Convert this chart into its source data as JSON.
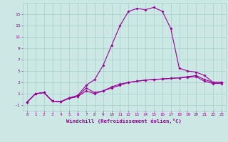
{
  "xlabel": "Windchill (Refroidissement éolien,°C)",
  "bg_color": "#cce8e4",
  "grid_color": "#aacccc",
  "line_color": "#990099",
  "x_values": [
    0,
    1,
    2,
    3,
    4,
    5,
    6,
    7,
    8,
    9,
    10,
    11,
    12,
    13,
    14,
    15,
    16,
    17,
    18,
    19,
    20,
    21,
    22,
    23
  ],
  "series1": [
    -0.5,
    1.0,
    1.2,
    -0.3,
    -0.4,
    0.2,
    0.5,
    2.0,
    1.2,
    1.5,
    2.0,
    2.5,
    3.0,
    3.2,
    3.4,
    3.5,
    3.6,
    3.7,
    3.8,
    4.0,
    4.2,
    3.5,
    3.0,
    3.0
  ],
  "series2": [
    -0.5,
    1.0,
    1.2,
    -0.3,
    -0.4,
    0.3,
    0.7,
    2.5,
    3.5,
    6.0,
    9.5,
    13.0,
    15.5,
    16.0,
    15.8,
    16.2,
    15.5,
    12.5,
    5.5,
    5.0,
    4.8,
    4.2,
    3.0,
    3.0
  ],
  "series3": [
    -0.5,
    1.0,
    1.2,
    -0.3,
    -0.4,
    0.2,
    0.5,
    1.5,
    1.0,
    1.5,
    2.2,
    2.7,
    3.0,
    3.2,
    3.4,
    3.5,
    3.6,
    3.7,
    3.8,
    3.9,
    4.0,
    3.2,
    2.8,
    2.8
  ],
  "ylim": [
    -2.0,
    17.0
  ],
  "yticks": [
    -1,
    1,
    3,
    5,
    7,
    9,
    11,
    13,
    15
  ],
  "xlim": [
    -0.5,
    23.5
  ],
  "figsize": [
    3.2,
    2.0
  ],
  "dpi": 100
}
